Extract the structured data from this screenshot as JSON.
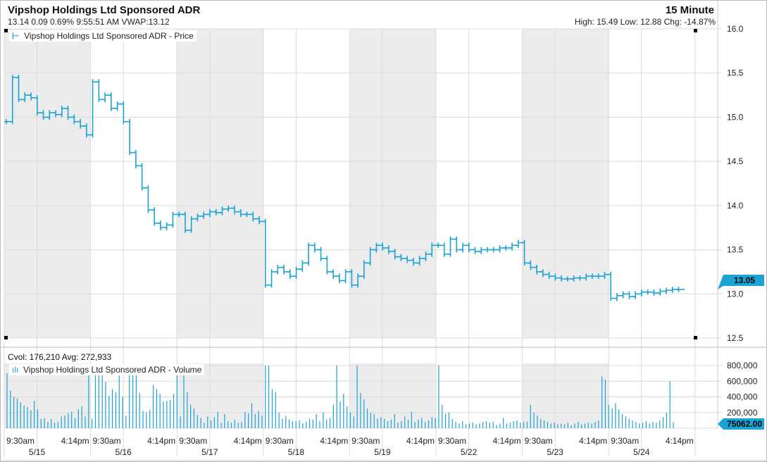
{
  "header": {
    "title": "Vipshop Holdings Ltd Sponsored ADR",
    "quote": "13.14 0.09 0.69% 9:55:51 AM VWAP:13.12",
    "interval": "15 Minute",
    "stats": "High: 15.49 Low: 12.88 Chg: -14.87%"
  },
  "colors": {
    "series": "#1aa3d6",
    "shade": "#ececec",
    "grid": "#dcdcdc"
  },
  "chart_data": [
    {
      "type": "line",
      "title": "Vipshop Holdings Ltd Sponsored ADR - Price",
      "ylim": [
        12.5,
        16.0
      ],
      "yticks": [
        "16.0",
        "15.5",
        "15.0",
        "14.5",
        "14.0",
        "13.5",
        "13.0",
        "12.5"
      ],
      "last_label": "13.05",
      "days": [
        {
          "date": "5/15",
          "values": [
            14.95,
            15.45,
            15.2,
            15.25,
            15.22,
            15.05,
            15.0,
            15.05,
            15.03,
            15.1,
            15.0,
            14.95,
            14.9,
            14.8
          ]
        },
        {
          "date": "5/16",
          "values": [
            15.4,
            15.2,
            15.25,
            15.1,
            15.15,
            14.95,
            14.6,
            14.45,
            14.2,
            13.95,
            13.8,
            13.75,
            13.78,
            13.9
          ]
        },
        {
          "date": "5/17",
          "values": [
            13.9,
            13.72,
            13.85,
            13.88,
            13.9,
            13.93,
            13.92,
            13.96,
            13.97,
            13.93,
            13.9,
            13.9,
            13.85,
            13.82
          ]
        },
        {
          "date": "5/18",
          "values": [
            13.1,
            13.25,
            13.3,
            13.25,
            13.2,
            13.28,
            13.35,
            13.55,
            13.5,
            13.4,
            13.25,
            13.2,
            13.15,
            13.25
          ]
        },
        {
          "date": "5/19",
          "values": [
            13.1,
            13.2,
            13.35,
            13.5,
            13.55,
            13.52,
            13.48,
            13.42,
            13.4,
            13.38,
            13.35,
            13.4,
            13.45,
            13.55
          ]
        },
        {
          "date": "5/22",
          "values": [
            13.55,
            13.45,
            13.62,
            13.5,
            13.55,
            13.5,
            13.48,
            13.5,
            13.5,
            13.5,
            13.52,
            13.52,
            13.55,
            13.58
          ]
        },
        {
          "date": "5/23",
          "values": [
            13.35,
            13.3,
            13.25,
            13.22,
            13.2,
            13.18,
            13.17,
            13.17,
            13.18,
            13.18,
            13.2,
            13.2,
            13.2,
            13.22
          ]
        },
        {
          "date": "5/24",
          "values": [
            12.95,
            12.98,
            13.0,
            12.97,
            13.0,
            13.02,
            13.02,
            13.01,
            13.03,
            13.04,
            13.05,
            13.05
          ]
        }
      ]
    },
    {
      "type": "bar",
      "title": "Vipshop Holdings Ltd Sponsored ADR - Volume",
      "ylim": [
        0,
        800000
      ],
      "yticks": [
        "800,000",
        "600,000",
        "400,000",
        "200,000"
      ],
      "summary": "Cvol: 176,210 Avg: 272,933",
      "last_label": "75062.00",
      "values": [
        700000,
        480000,
        400000,
        380000,
        330000,
        290000,
        270000,
        230000,
        350000,
        240000,
        120000,
        130000,
        80000,
        120000,
        70000,
        80000,
        150000,
        160000,
        190000,
        210000,
        130000,
        240000,
        280000,
        150000,
        800000,
        120000,
        800000,
        800000,
        770000,
        590000,
        410000,
        500000,
        460000,
        800000,
        400000,
        160000,
        800000,
        800000,
        800000,
        450000,
        220000,
        200000,
        230000,
        550000,
        500000,
        440000,
        340000,
        350000,
        360000,
        440000,
        730000,
        150000,
        800000,
        460000,
        300000,
        250000,
        170000,
        130000,
        70000,
        150000,
        100000,
        140000,
        210000,
        70000,
        180000,
        90000,
        70000,
        110000,
        70000,
        80000,
        210000,
        190000,
        320000,
        180000,
        220000,
        160000,
        800000,
        800000,
        500000,
        460000,
        200000,
        120000,
        160000,
        110000,
        90000,
        90000,
        100000,
        60000,
        80000,
        120000,
        110000,
        180000,
        90000,
        200000,
        110000,
        130000,
        300000,
        800000,
        340000,
        440000,
        280000,
        200000,
        150000,
        800000,
        450000,
        370000,
        250000,
        200000,
        180000,
        120000,
        140000,
        120000,
        90000,
        110000,
        180000,
        70000,
        90000,
        150000,
        110000,
        210000,
        80000,
        110000,
        130000,
        80000,
        100000,
        140000,
        130000,
        800000,
        300000,
        180000,
        200000,
        120000,
        80000,
        60000,
        90000,
        50000,
        60000,
        70000,
        50000,
        60000,
        80000,
        90000,
        70000,
        80000,
        40000,
        60000,
        130000,
        60000,
        70000,
        90000,
        100000,
        70000,
        80000,
        80000,
        300000,
        200000,
        160000,
        120000,
        100000,
        80000,
        60000,
        70000,
        50000,
        60000,
        50000,
        70000,
        40000,
        60000,
        80000,
        50000,
        60000,
        70000,
        60000,
        80000,
        100000,
        660000,
        620000,
        300000,
        250000,
        320000,
        240000,
        180000,
        150000,
        120000,
        100000,
        80000,
        60000,
        70000,
        90000,
        60000,
        80000,
        70000,
        100000,
        140000,
        200000,
        600000,
        75062
      ]
    }
  ],
  "xaxis": {
    "times": [
      "9:30am",
      "4:14pm"
    ],
    "dates": [
      "5/15",
      "5/16",
      "5/17",
      "5/18",
      "5/19",
      "5/22",
      "5/23",
      "5/24"
    ]
  }
}
